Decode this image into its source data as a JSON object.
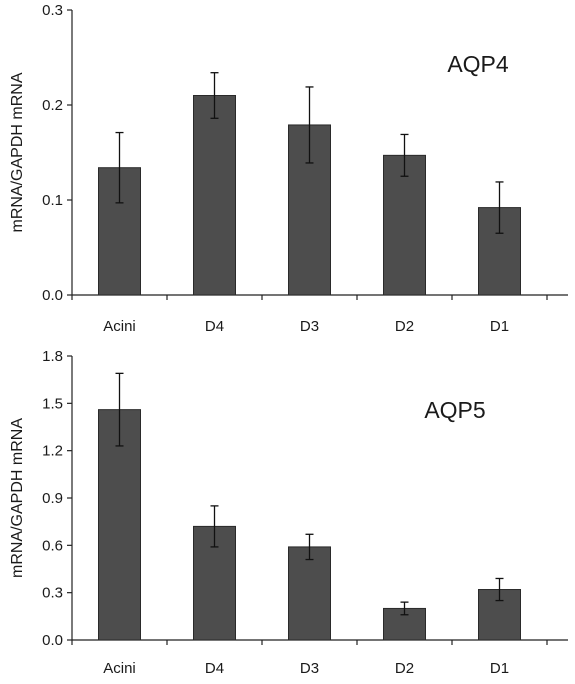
{
  "chart_data": [
    {
      "type": "bar",
      "title": "AQP4",
      "ylabel": "mRNA/GAPDH mRNA",
      "xlabel": "",
      "categories": [
        "Acini",
        "D4",
        "D3",
        "D2",
        "D1"
      ],
      "values": [
        0.134,
        0.21,
        0.179,
        0.147,
        0.092
      ],
      "errors": [
        0.037,
        0.024,
        0.04,
        0.022,
        0.027
      ],
      "ylim": [
        0,
        0.3
      ],
      "yticks": [
        0,
        0.1,
        0.2,
        0.3
      ],
      "ytick_labels": [
        "0.0",
        "0.1",
        "0.2",
        "0.3"
      ],
      "bar_color": "#4d4d4d",
      "grid": false,
      "legend": false
    },
    {
      "type": "bar",
      "title": "AQP5",
      "ylabel": "mRNA/GAPDH mRNA",
      "xlabel": "",
      "categories": [
        "Acini",
        "D4",
        "D3",
        "D2",
        "D1"
      ],
      "values": [
        1.46,
        0.72,
        0.59,
        0.2,
        0.32
      ],
      "errors": [
        0.23,
        0.13,
        0.08,
        0.04,
        0.07
      ],
      "ylim": [
        0,
        1.8
      ],
      "yticks": [
        0,
        0.3,
        0.6,
        0.9,
        1.2,
        1.5,
        1.8
      ],
      "ytick_labels": [
        "0.0",
        "0.3",
        "0.6",
        "0.9",
        "1.2",
        "1.5",
        "1.8"
      ],
      "bar_color": "#4d4d4d",
      "grid": false,
      "legend": false
    }
  ]
}
